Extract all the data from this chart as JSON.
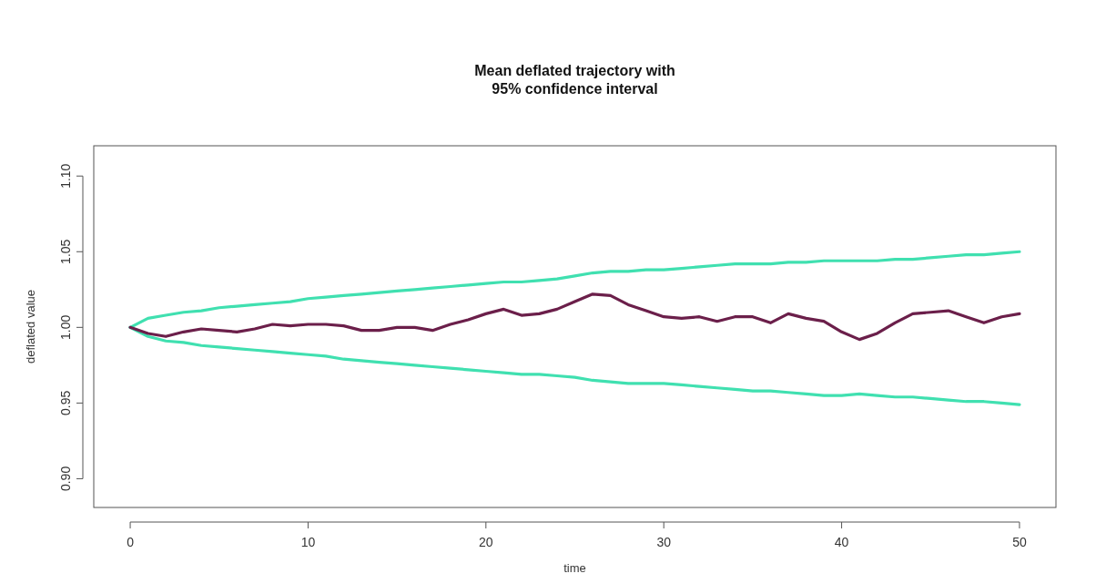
{
  "chart_data": {
    "type": "line",
    "title": "Mean deflated trajectory with\n95% confidence interval",
    "xlabel": "time",
    "ylabel": "deflated value",
    "x": [
      0,
      1,
      2,
      3,
      4,
      5,
      6,
      7,
      8,
      9,
      10,
      11,
      12,
      13,
      14,
      15,
      16,
      17,
      18,
      19,
      20,
      21,
      22,
      23,
      24,
      25,
      26,
      27,
      28,
      29,
      30,
      31,
      32,
      33,
      34,
      35,
      36,
      37,
      38,
      39,
      40,
      41,
      42,
      43,
      44,
      45,
      46,
      47,
      48,
      49,
      50
    ],
    "series": [
      {
        "color": "#40e0b0",
        "values": [
          1.0,
          1.006,
          1.008,
          1.01,
          1.011,
          1.013,
          1.014,
          1.015,
          1.016,
          1.017,
          1.019,
          1.02,
          1.021,
          1.022,
          1.023,
          1.024,
          1.025,
          1.026,
          1.027,
          1.028,
          1.029,
          1.03,
          1.03,
          1.031,
          1.032,
          1.034,
          1.036,
          1.037,
          1.037,
          1.038,
          1.038,
          1.039,
          1.04,
          1.041,
          1.042,
          1.042,
          1.042,
          1.043,
          1.043,
          1.044,
          1.044,
          1.044,
          1.044,
          1.045,
          1.045,
          1.046,
          1.047,
          1.048,
          1.048,
          1.049,
          1.05
        ]
      },
      {
        "color": "#40e0b0",
        "values": [
          1.0,
          0.994,
          0.991,
          0.99,
          0.988,
          0.987,
          0.986,
          0.985,
          0.984,
          0.983,
          0.982,
          0.981,
          0.979,
          0.978,
          0.977,
          0.976,
          0.975,
          0.974,
          0.973,
          0.972,
          0.971,
          0.97,
          0.969,
          0.969,
          0.968,
          0.967,
          0.965,
          0.964,
          0.963,
          0.963,
          0.963,
          0.962,
          0.961,
          0.96,
          0.959,
          0.958,
          0.958,
          0.957,
          0.956,
          0.955,
          0.955,
          0.956,
          0.955,
          0.954,
          0.954,
          0.953,
          0.952,
          0.951,
          0.951,
          0.95,
          0.949
        ]
      },
      {
        "color": "#6b1f4a",
        "values": [
          1.0,
          0.996,
          0.994,
          0.997,
          0.999,
          0.998,
          0.997,
          0.999,
          1.002,
          1.001,
          1.002,
          1.002,
          1.001,
          0.998,
          0.998,
          1.0,
          1.0,
          0.998,
          1.002,
          1.005,
          1.009,
          1.012,
          1.008,
          1.009,
          1.012,
          1.017,
          1.022,
          1.021,
          1.015,
          1.011,
          1.007,
          1.006,
          1.007,
          1.004,
          1.007,
          1.007,
          1.003,
          1.009,
          1.006,
          1.004,
          0.997,
          0.992,
          0.996,
          1.003,
          1.009,
          1.01,
          1.011,
          1.007,
          1.003,
          1.007,
          1.009
        ]
      }
    ],
    "xlim": [
      -2.05,
      52.05
    ],
    "ylim": [
      0.881,
      1.12
    ],
    "xticks": [
      0,
      10,
      20,
      30,
      40,
      50
    ],
    "yticks": [
      {
        "value": 0.9,
        "label": "0.90"
      },
      {
        "value": 0.95,
        "label": "0.95"
      },
      {
        "value": 1.0,
        "label": "1.00"
      },
      {
        "value": 1.05,
        "label": "1.05"
      },
      {
        "value": 1.1,
        "label": "1.10"
      }
    ],
    "grid": false,
    "marker": "none",
    "line_style": "solid"
  }
}
